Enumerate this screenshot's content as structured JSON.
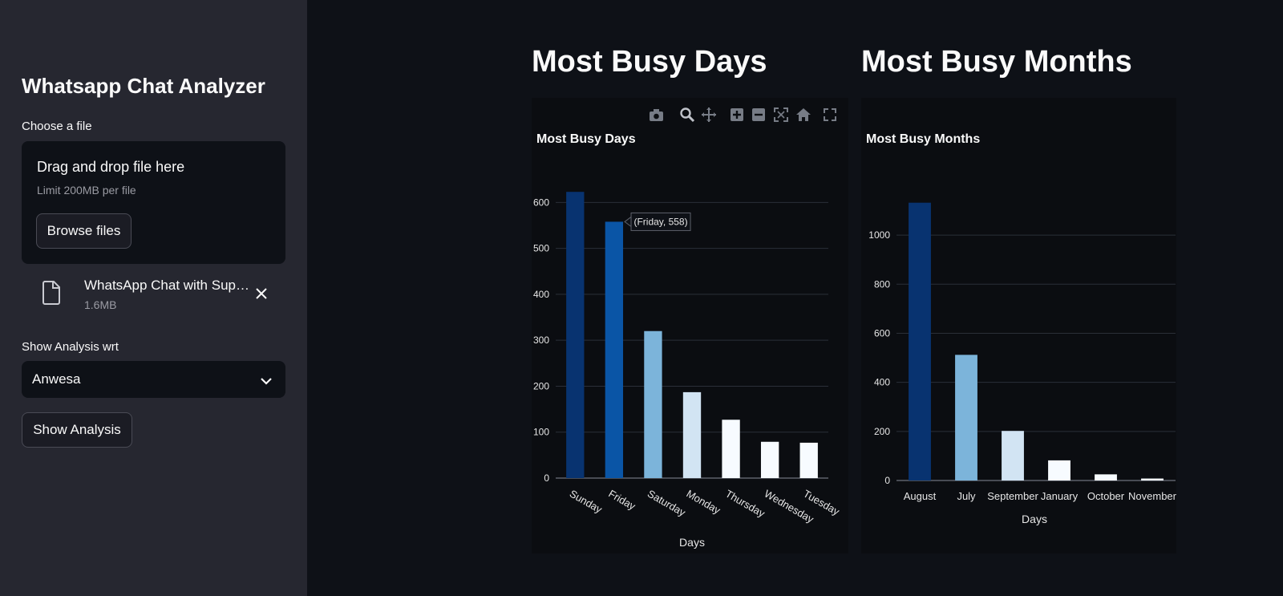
{
  "sidebar": {
    "title": "Whatsapp Chat Analyzer",
    "uploader_label": "Choose a file",
    "dropzone_title": "Drag and drop file here",
    "dropzone_limit": "Limit 200MB per file",
    "browse_label": "Browse files",
    "file": {
      "name": "WhatsApp Chat with Sup…",
      "size": "1.6MB"
    },
    "select_label": "Show Analysis wrt",
    "select_value": "Anwesa",
    "show_button": "Show Analysis"
  },
  "main": {
    "days_heading": "Most Busy Days",
    "months_heading": "Most Busy Months"
  },
  "colors": {
    "sidebar_bg": "#262730",
    "main_bg": "#0e1117",
    "bar_dark": "#083370",
    "bar_blue": "#0a55a6",
    "bar_light": "#7cb4da",
    "bar_pale": "#d2e4f3",
    "bar_white": "#f7fbff"
  },
  "chart_data": [
    {
      "type": "bar",
      "title": "Most Busy Days",
      "xlabel": "Days",
      "ylabel": "",
      "categories": [
        "Sunday",
        "Friday",
        "Saturday",
        "Monday",
        "Thursday",
        "Wednesday",
        "Tuesday"
      ],
      "values": [
        623,
        558,
        320,
        187,
        127,
        79,
        77
      ],
      "yticks": [
        "0",
        "100",
        "200",
        "300",
        "400",
        "500",
        "600"
      ],
      "ylim": [
        0,
        660
      ],
      "tooltip": "(Friday, 558)",
      "colors": [
        "#083370",
        "#0a55a6",
        "#7cb4da",
        "#d2e4f3",
        "#f7fbff",
        "#f7fbff",
        "#f7fbff"
      ]
    },
    {
      "type": "bar",
      "title": "Most Busy Months",
      "xlabel": "Days",
      "ylabel": "",
      "categories": [
        "August",
        "July",
        "September",
        "January",
        "October",
        "November"
      ],
      "values": [
        1132,
        512,
        202,
        82,
        25,
        8
      ],
      "yticks": [
        "0",
        "200",
        "400",
        "600",
        "800",
        "1000"
      ],
      "ylim": [
        0,
        1180
      ],
      "colors": [
        "#083370",
        "#7cb4da",
        "#d2e4f3",
        "#f7fbff",
        "#f7fbff",
        "#f7fbff"
      ]
    }
  ]
}
